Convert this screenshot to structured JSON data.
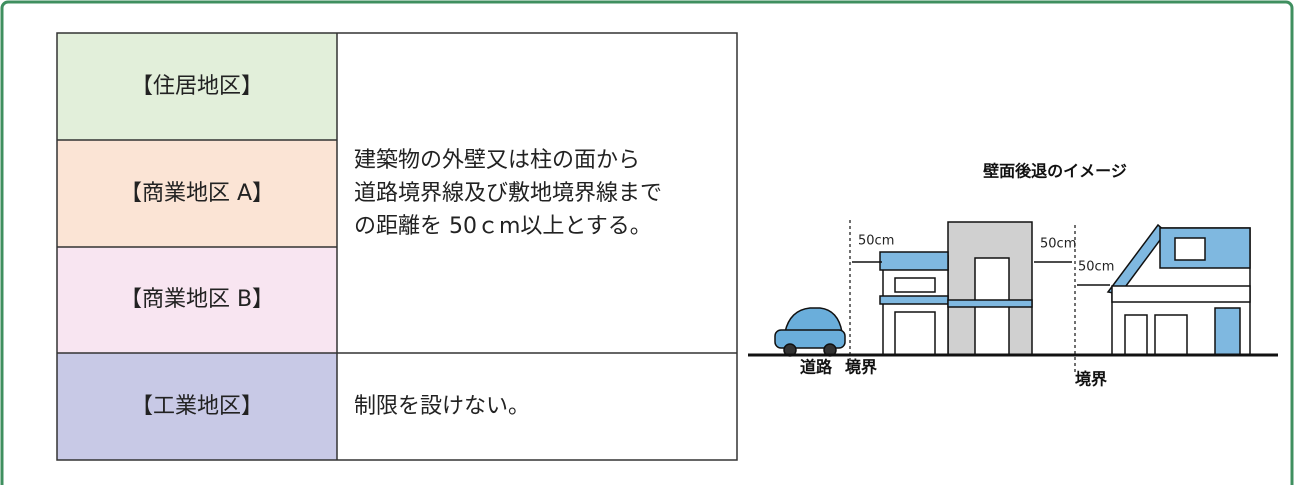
{
  "table": {
    "rows": [
      {
        "zone": "【住居地区】"
      },
      {
        "zone": "【商業地区 A】"
      },
      {
        "zone": "【商業地区 B】"
      },
      {
        "zone": "【工業地区】"
      }
    ],
    "rules": [
      {
        "lines": [
          "建築物の外壁又は柱の面から",
          "道路境界線及び敷地境界線まで",
          "の距離を 50ｃm以上とする。"
        ]
      },
      {
        "lines": [
          "制限を設けない。"
        ]
      }
    ]
  },
  "illustration": {
    "title": "壁面後退のイメージ",
    "labels": {
      "setback_front": "50cm",
      "setback_side_1": "50cm",
      "setback_side_2": "50cm",
      "road": "道路",
      "boundary_1": "境界",
      "boundary_2": "境界"
    }
  }
}
